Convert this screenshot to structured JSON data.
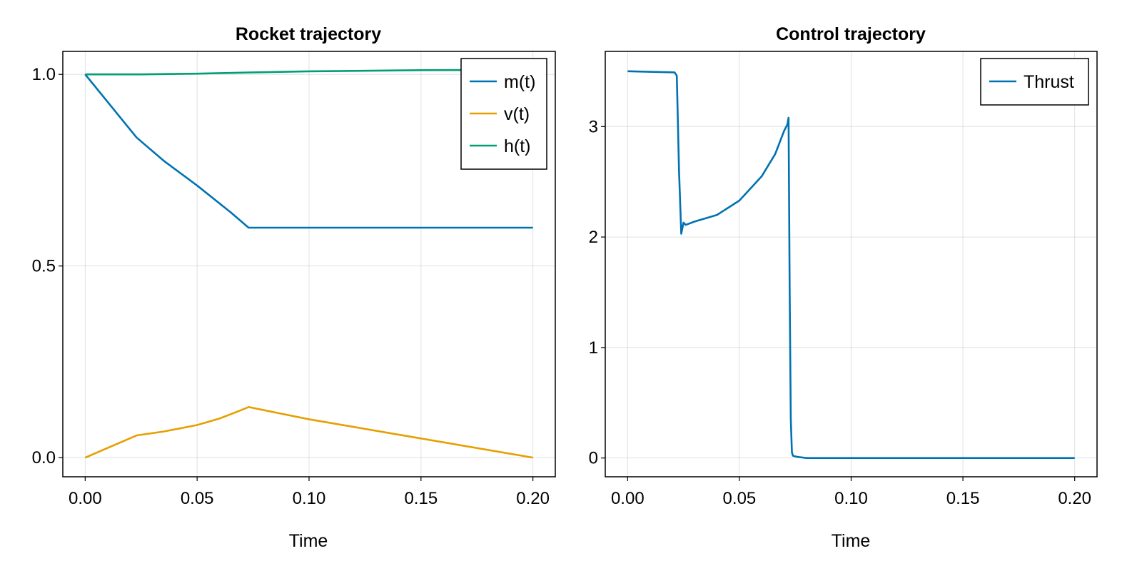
{
  "chart_data": [
    {
      "type": "line",
      "title": "Rocket trajectory",
      "xlabel": "Time",
      "ylabel": "",
      "xlim": [
        -0.01,
        0.21
      ],
      "ylim": [
        -0.05,
        1.06
      ],
      "xticks": [
        0.0,
        0.05,
        0.1,
        0.15,
        0.2
      ],
      "xtick_labels": [
        "0.00",
        "0.05",
        "0.10",
        "0.15",
        "0.20"
      ],
      "yticks": [
        0.0,
        0.5,
        1.0
      ],
      "ytick_labels": [
        "0.0",
        "0.5",
        "1.0"
      ],
      "grid": true,
      "legend_position": "top-right",
      "series": [
        {
          "name": "m(t)",
          "color": "#0072b2",
          "x": [
            0.0,
            0.023,
            0.035,
            0.05,
            0.065,
            0.073,
            0.1,
            0.15,
            0.2
          ],
          "y": [
            1.0,
            0.835,
            0.775,
            0.71,
            0.64,
            0.6,
            0.6,
            0.6,
            0.6
          ]
        },
        {
          "name": "v(t)",
          "color": "#e69f00",
          "x": [
            0.0,
            0.023,
            0.035,
            0.05,
            0.06,
            0.068,
            0.073,
            0.1,
            0.15,
            0.2
          ],
          "y": [
            0.0,
            0.058,
            0.068,
            0.085,
            0.102,
            0.12,
            0.132,
            0.1,
            0.05,
            0.0
          ]
        },
        {
          "name": "h(t)",
          "color": "#009e73",
          "x": [
            0.0,
            0.025,
            0.05,
            0.073,
            0.1,
            0.15,
            0.2
          ],
          "y": [
            1.0,
            1.0,
            1.002,
            1.005,
            1.008,
            1.011,
            1.012
          ]
        }
      ]
    },
    {
      "type": "line",
      "title": "Control trajectory",
      "xlabel": "Time",
      "ylabel": "",
      "xlim": [
        -0.01,
        0.21
      ],
      "ylim": [
        -0.17,
        3.68
      ],
      "xticks": [
        0.0,
        0.05,
        0.1,
        0.15,
        0.2
      ],
      "xtick_labels": [
        "0.00",
        "0.05",
        "0.10",
        "0.15",
        "0.20"
      ],
      "yticks": [
        0,
        1,
        2,
        3
      ],
      "ytick_labels": [
        "0",
        "1",
        "2",
        "3"
      ],
      "grid": true,
      "legend_position": "top-right",
      "series": [
        {
          "name": "Thrust",
          "color": "#0072b2",
          "x": [
            0.0,
            0.021,
            0.022,
            0.023,
            0.024,
            0.025,
            0.026,
            0.03,
            0.04,
            0.05,
            0.06,
            0.066,
            0.07,
            0.0715,
            0.072,
            0.0725,
            0.073,
            0.0735,
            0.074,
            0.076,
            0.08,
            0.1,
            0.15,
            0.2
          ],
          "y": [
            3.5,
            3.49,
            3.46,
            2.6,
            2.03,
            2.13,
            2.11,
            2.14,
            2.2,
            2.33,
            2.55,
            2.75,
            2.96,
            3.02,
            3.08,
            1.5,
            0.35,
            0.05,
            0.02,
            0.01,
            0.0,
            0.0,
            0.0,
            0.0
          ]
        }
      ]
    }
  ]
}
